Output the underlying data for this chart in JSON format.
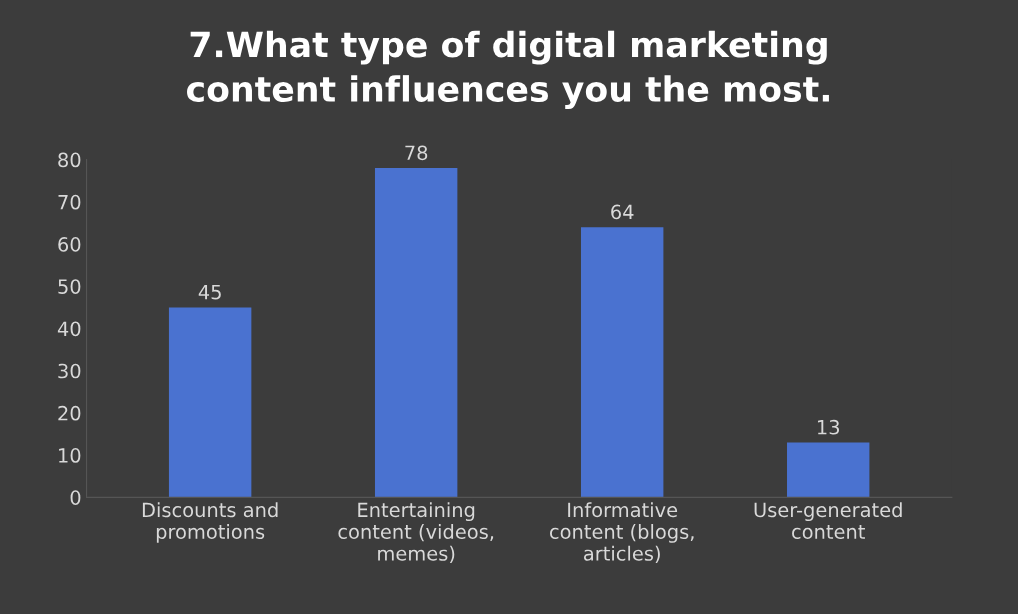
{
  "chart_data": {
    "type": "bar",
    "title": "7.What type of digital marketing\ncontent influences you the most.",
    "categories": [
      "Discounts and\npromotions",
      "Entertaining\ncontent (videos,\nmemes)",
      "Informative\ncontent (blogs,\narticles)",
      "User-generated\ncontent"
    ],
    "values": [
      45,
      78,
      64,
      13
    ],
    "color": "#4a72d0",
    "ylim": [
      0,
      80
    ],
    "yticks": [
      0,
      10,
      20,
      30,
      40,
      50,
      60,
      70,
      80
    ],
    "grid": false,
    "data_labels": true
  }
}
